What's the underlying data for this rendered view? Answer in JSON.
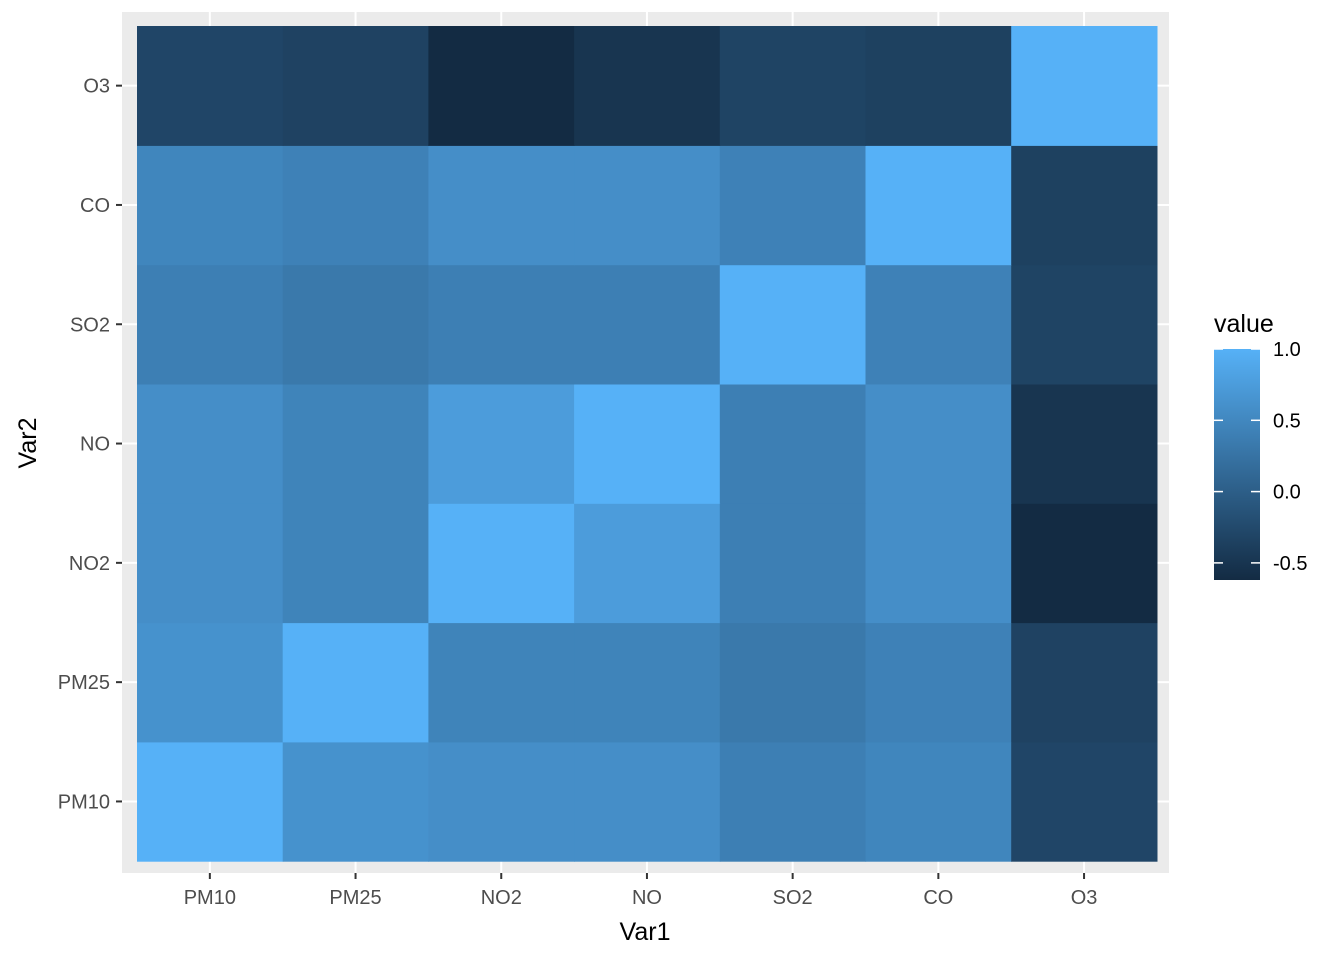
{
  "chart_data": {
    "type": "heatmap",
    "title": "",
    "xlabel": "Var1",
    "ylabel": "Var2",
    "x_categories": [
      "PM10",
      "PM25",
      "NO2",
      "NO",
      "SO2",
      "CO",
      "O3"
    ],
    "y_categories": [
      "PM10",
      "PM25",
      "NO2",
      "NO",
      "SO2",
      "CO",
      "O3"
    ],
    "values": [
      [
        1.0,
        0.62,
        0.58,
        0.58,
        0.4,
        0.48,
        -0.3
      ],
      [
        0.62,
        1.0,
        0.45,
        0.45,
        0.32,
        0.42,
        -0.34
      ],
      [
        0.58,
        0.45,
        1.0,
        0.75,
        0.4,
        0.58,
        -0.62
      ],
      [
        0.58,
        0.45,
        0.75,
        1.0,
        0.4,
        0.58,
        -0.5
      ],
      [
        0.4,
        0.32,
        0.4,
        0.4,
        1.0,
        0.42,
        -0.32
      ],
      [
        0.48,
        0.42,
        0.58,
        0.58,
        0.42,
        1.0,
        -0.36
      ],
      [
        -0.3,
        -0.34,
        -0.62,
        -0.5,
        -0.32,
        -0.36,
        1.0
      ]
    ],
    "legend": {
      "title": "value",
      "position": "right",
      "breaks": [
        1.0,
        0.5,
        0.0,
        -0.5
      ],
      "break_labels": [
        "1.0",
        "0.5",
        "0.0",
        "-0.5"
      ],
      "limits": [
        -0.62,
        1.0
      ]
    },
    "color_low": "#132B43",
    "color_high": "#56B1F7",
    "panel_background": "#EBEBEB",
    "grid": true
  }
}
